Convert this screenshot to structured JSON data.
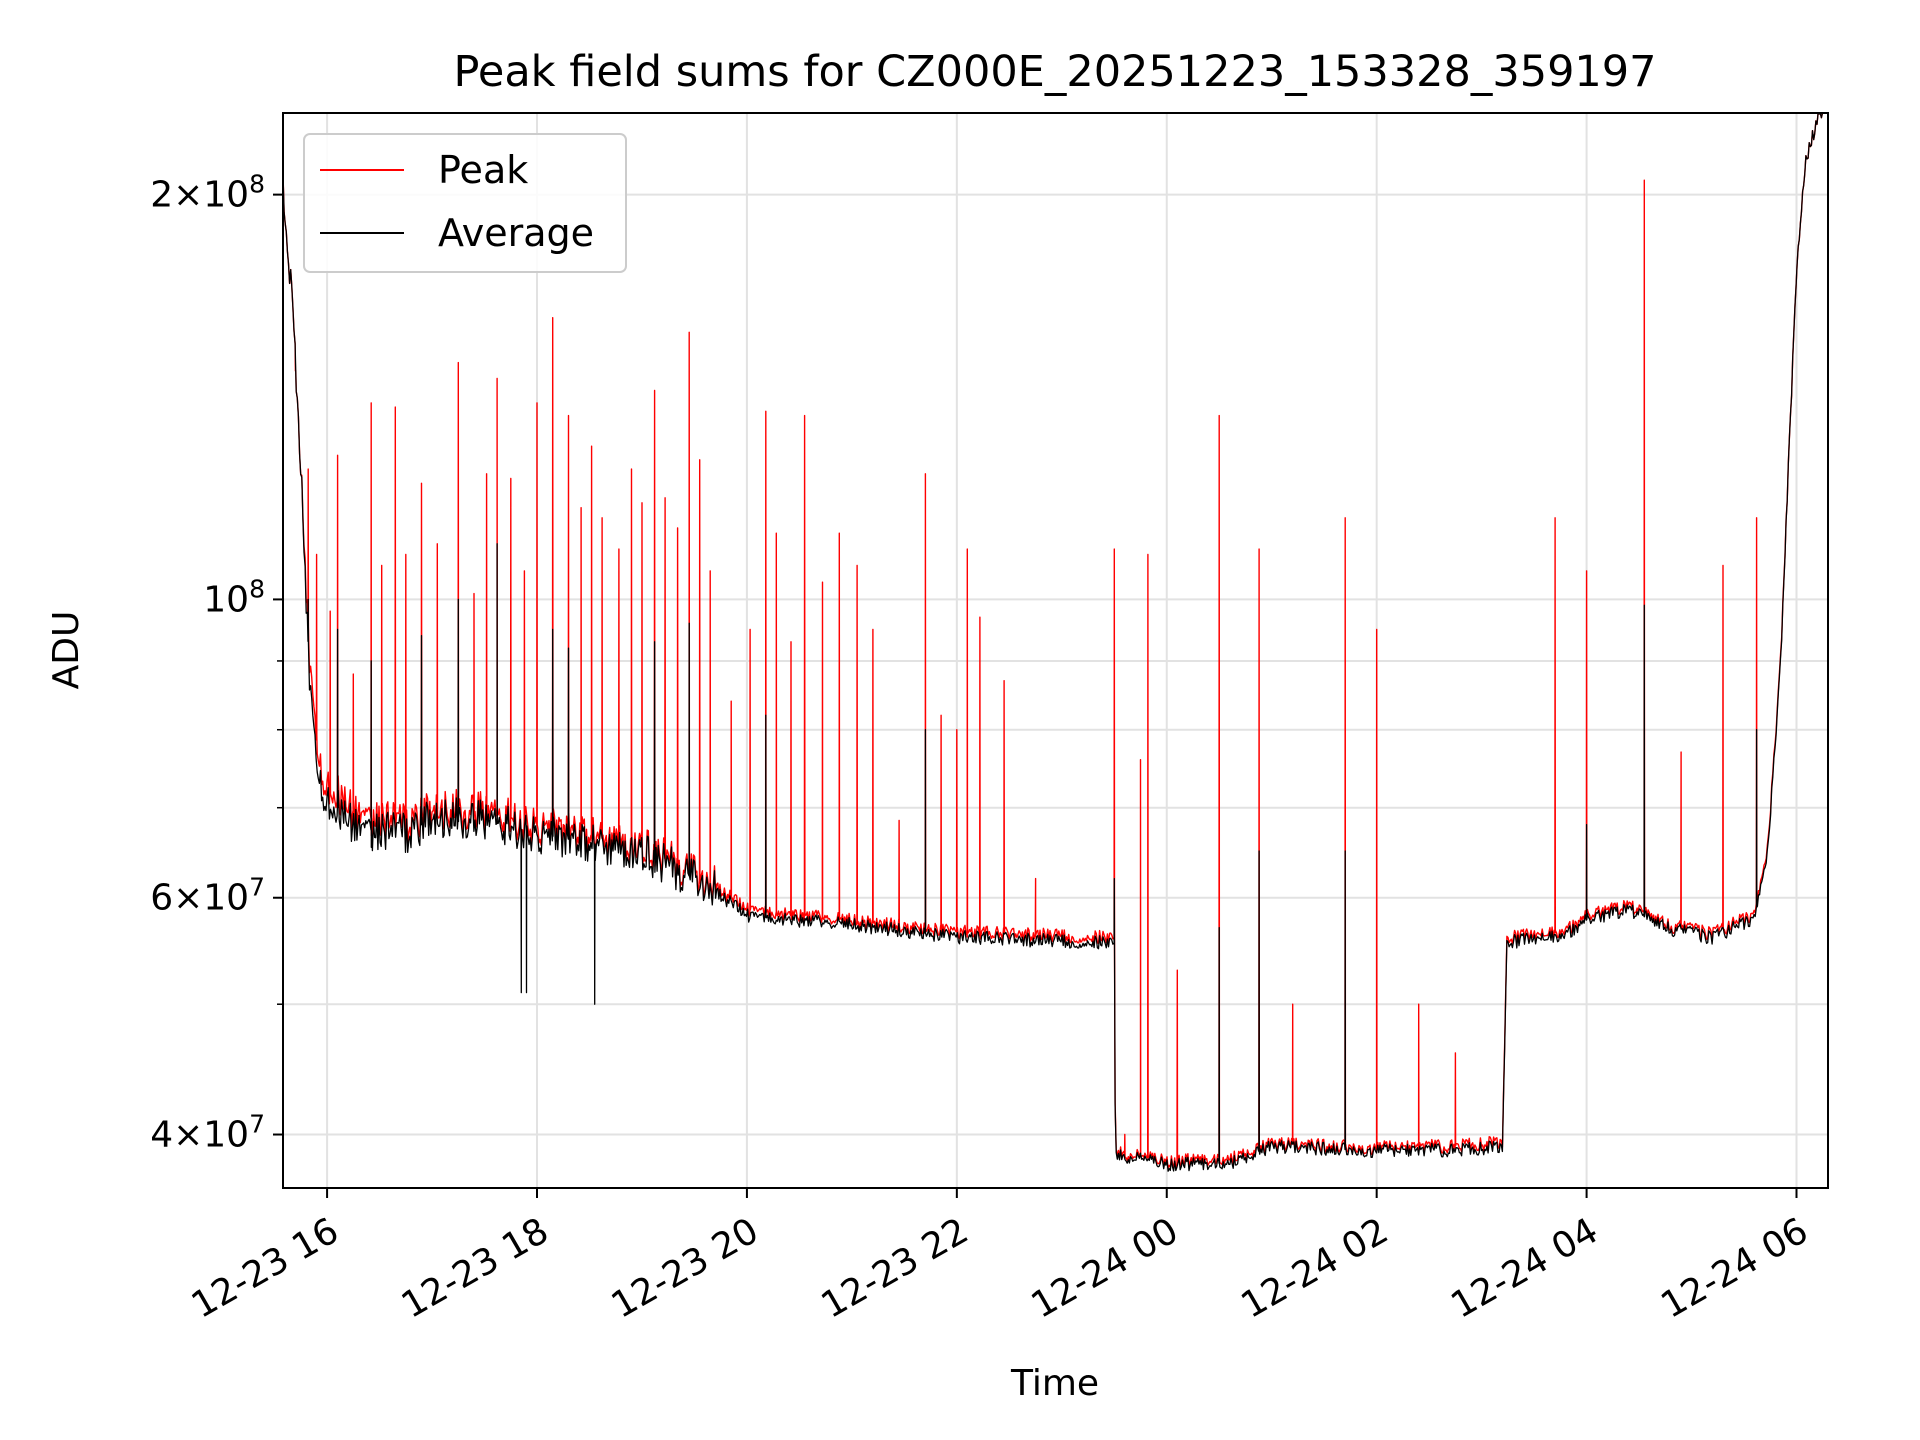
{
  "chart_data": {
    "type": "line",
    "title": "Peak field sums for CZ000E_20251223_153328_359197",
    "xlabel": "Time",
    "ylabel": "ADU",
    "yscale": "log",
    "ylim": [
      36500000,
      230000000
    ],
    "xlim_hours": [
      -0.42,
      14.3
    ],
    "grid": true,
    "legend_position": "upper-left",
    "x_ticks": [
      {
        "hours": 0,
        "label": "12-23 16"
      },
      {
        "hours": 2,
        "label": "12-23 18"
      },
      {
        "hours": 4,
        "label": "12-23 20"
      },
      {
        "hours": 6,
        "label": "12-23 22"
      },
      {
        "hours": 8,
        "label": "12-24 00"
      },
      {
        "hours": 10,
        "label": "12-24 02"
      },
      {
        "hours": 12,
        "label": "12-24 04"
      },
      {
        "hours": 14,
        "label": "12-24 06"
      }
    ],
    "y_ticks": [
      {
        "value": 40000000,
        "mantissa": "4",
        "exponent": "7"
      },
      {
        "value": 60000000,
        "mantissa": "6",
        "exponent": "7"
      },
      {
        "value": 100000000,
        "mantissa": "",
        "exponent": "8"
      },
      {
        "value": 200000000,
        "mantissa": "2",
        "exponent": "8"
      }
    ],
    "y_minor_ticks": [
      50000000,
      70000000,
      80000000,
      90000000
    ],
    "series": [
      {
        "name": "Peak",
        "color": "#ff0000",
        "baseline": [
          [
            -0.42,
            205000000
          ],
          [
            -0.35,
            175000000
          ],
          [
            -0.25,
            125000000
          ],
          [
            -0.15,
            85000000
          ],
          [
            -0.05,
            74000000
          ],
          [
            0.3,
            69000000
          ],
          [
            0.8,
            68000000
          ],
          [
            1.0,
            70000000
          ],
          [
            1.5,
            69500000
          ],
          [
            2.0,
            68000000
          ],
          [
            3.0,
            65500000
          ],
          [
            3.6,
            62000000
          ],
          [
            4.0,
            58800000
          ],
          [
            5.0,
            57700000
          ],
          [
            6.0,
            56600000
          ],
          [
            7.0,
            56200000
          ],
          [
            7.5,
            56000000
          ],
          [
            7.51,
            38800000
          ],
          [
            8.0,
            38200000
          ],
          [
            8.6,
            38400000
          ],
          [
            9.0,
            39400000
          ],
          [
            10.0,
            39100000
          ],
          [
            11.0,
            39300000
          ],
          [
            11.2,
            39600000
          ],
          [
            11.24,
            56000000
          ],
          [
            11.8,
            56600000
          ],
          [
            12.0,
            58200000
          ],
          [
            12.4,
            59200000
          ],
          [
            12.8,
            57200000
          ],
          [
            13.2,
            56400000
          ],
          [
            13.6,
            58400000
          ],
          [
            13.72,
            65000000
          ],
          [
            13.78,
            75000000
          ],
          [
            13.82,
            83000000
          ],
          [
            13.86,
            95000000
          ],
          [
            13.93,
            130000000
          ],
          [
            14.0,
            175000000
          ],
          [
            14.08,
            210000000
          ],
          [
            14.2,
            228000000
          ],
          [
            14.3,
            232000000
          ]
        ],
        "spikes": [
          [
            -0.3,
            148000000
          ],
          [
            -0.18,
            125000000
          ],
          [
            -0.1,
            108000000
          ],
          [
            0.03,
            98000000
          ],
          [
            0.1,
            128000000
          ],
          [
            0.25,
            88000000
          ],
          [
            0.42,
            140000000
          ],
          [
            0.52,
            106000000
          ],
          [
            0.65,
            139000000
          ],
          [
            0.75,
            108000000
          ],
          [
            0.9,
            122000000
          ],
          [
            1.05,
            110000000
          ],
          [
            1.25,
            150000000
          ],
          [
            1.4,
            101000000
          ],
          [
            1.52,
            124000000
          ],
          [
            1.62,
            146000000
          ],
          [
            1.75,
            123000000
          ],
          [
            1.88,
            105000000
          ],
          [
            2.0,
            140000000
          ],
          [
            2.15,
            162000000
          ],
          [
            2.3,
            137000000
          ],
          [
            2.42,
            117000000
          ],
          [
            2.52,
            130000000
          ],
          [
            2.62,
            115000000
          ],
          [
            2.78,
            109000000
          ],
          [
            2.9,
            125000000
          ],
          [
            3.0,
            118000000
          ],
          [
            3.12,
            143000000
          ],
          [
            3.22,
            119000000
          ],
          [
            3.34,
            113000000
          ],
          [
            3.45,
            158000000
          ],
          [
            3.55,
            127000000
          ],
          [
            3.65,
            105000000
          ],
          [
            3.85,
            84000000
          ],
          [
            4.03,
            95000000
          ],
          [
            4.18,
            138000000
          ],
          [
            4.28,
            112000000
          ],
          [
            4.42,
            93000000
          ],
          [
            4.55,
            137000000
          ],
          [
            4.72,
            103000000
          ],
          [
            4.88,
            112000000
          ],
          [
            5.05,
            106000000
          ],
          [
            5.2,
            95000000
          ],
          [
            5.45,
            68500000
          ],
          [
            5.7,
            124000000
          ],
          [
            5.85,
            82000000
          ],
          [
            6.0,
            80000000
          ],
          [
            6.1,
            109000000
          ],
          [
            6.22,
            97000000
          ],
          [
            6.45,
            87000000
          ],
          [
            6.75,
            62000000
          ],
          [
            7.5,
            109000000
          ],
          [
            7.6,
            40000000
          ],
          [
            7.75,
            76000000
          ],
          [
            7.82,
            108000000
          ],
          [
            8.1,
            53000000
          ],
          [
            8.5,
            137000000
          ],
          [
            8.88,
            109000000
          ],
          [
            9.2,
            50000000
          ],
          [
            9.7,
            115000000
          ],
          [
            10.0,
            95000000
          ],
          [
            10.4,
            50000000
          ],
          [
            10.75,
            46000000
          ],
          [
            11.7,
            115000000
          ],
          [
            12.0,
            105000000
          ],
          [
            12.55,
            205000000
          ],
          [
            12.9,
            77000000
          ],
          [
            13.3,
            106000000
          ],
          [
            13.62,
            115000000
          ]
        ]
      },
      {
        "name": "Average",
        "color": "#000000",
        "baseline": [
          [
            -0.42,
            205000000
          ],
          [
            -0.35,
            175000000
          ],
          [
            -0.25,
            125000000
          ],
          [
            -0.15,
            82000000
          ],
          [
            -0.05,
            72000000
          ],
          [
            0.3,
            67500000
          ],
          [
            0.8,
            67000000
          ],
          [
            1.0,
            69000000
          ],
          [
            1.5,
            68500000
          ],
          [
            2.0,
            67000000
          ],
          [
            3.0,
            64800000
          ],
          [
            3.6,
            61500000
          ],
          [
            4.0,
            58200000
          ],
          [
            5.0,
            57300000
          ],
          [
            6.0,
            56100000
          ],
          [
            7.0,
            55700000
          ],
          [
            7.5,
            55500000
          ],
          [
            7.51,
            38600000
          ],
          [
            8.0,
            38000000
          ],
          [
            8.6,
            38100000
          ],
          [
            9.0,
            39200000
          ],
          [
            10.0,
            38900000
          ],
          [
            11.0,
            39000000
          ],
          [
            11.2,
            39300000
          ],
          [
            11.24,
            55600000
          ],
          [
            11.8,
            56200000
          ],
          [
            12.0,
            57800000
          ],
          [
            12.4,
            58800000
          ],
          [
            12.8,
            56900000
          ],
          [
            13.2,
            56000000
          ],
          [
            13.6,
            58000000
          ],
          [
            13.72,
            64500000
          ],
          [
            13.78,
            74500000
          ],
          [
            13.82,
            82500000
          ],
          [
            13.86,
            94500000
          ],
          [
            13.93,
            130000000
          ],
          [
            14.0,
            175000000
          ],
          [
            14.08,
            210000000
          ],
          [
            14.2,
            228000000
          ],
          [
            14.3,
            232000000
          ]
        ],
        "spikes": [
          [
            -0.18,
            100000000
          ],
          [
            0.1,
            95000000
          ],
          [
            0.42,
            90000000
          ],
          [
            0.9,
            94000000
          ],
          [
            1.25,
            100000000
          ],
          [
            1.62,
            110000000
          ],
          [
            2.15,
            95000000
          ],
          [
            2.3,
            92000000
          ],
          [
            3.12,
            93000000
          ],
          [
            3.45,
            96000000
          ],
          [
            4.18,
            82000000
          ],
          [
            5.7,
            80000000
          ],
          [
            7.5,
            62000000
          ],
          [
            8.5,
            57000000
          ],
          [
            8.88,
            65000000
          ],
          [
            9.7,
            65000000
          ],
          [
            12.0,
            68000000
          ],
          [
            12.55,
            99000000
          ],
          [
            13.62,
            80000000
          ]
        ],
        "dips": [
          [
            1.85,
            51000000
          ],
          [
            1.9,
            51000000
          ],
          [
            2.55,
            50000000
          ]
        ]
      }
    ]
  }
}
